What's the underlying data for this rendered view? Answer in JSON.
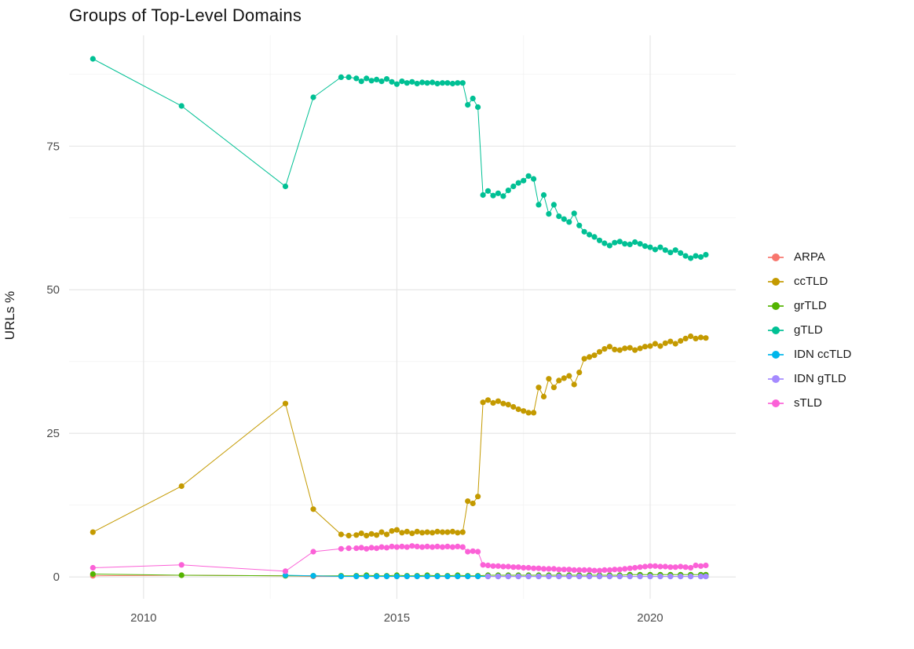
{
  "chart_data": {
    "type": "line",
    "title": "Groups of Top-Level Domains",
    "xlabel": "",
    "ylabel": "URLs %",
    "xlim": [
      2008.53,
      2021.69
    ],
    "ylim": [
      -3.8,
      94.3
    ],
    "xticks": [
      2010,
      2015,
      2020
    ],
    "yticks": [
      0,
      25,
      50,
      75
    ],
    "x_minor": [
      2012.5,
      2017.5
    ],
    "y_minor": [
      12.5,
      37.5,
      62.5,
      87.5
    ],
    "grid": true,
    "legend_position": "right",
    "point_radius": 3.6,
    "line_width": 1,
    "series": [
      {
        "name": "ARPA",
        "color": "#F8766D",
        "x": [
          2009.0,
          2010.75,
          2012.8,
          2013.35,
          2013.9,
          2014.2,
          2014.4,
          2014.6,
          2014.8,
          2015.0,
          2015.2,
          2015.4,
          2015.6,
          2015.8,
          2016.0,
          2016.2,
          2016.4,
          2016.6,
          2016.8,
          2017.0,
          2017.2,
          2017.4,
          2017.6,
          2017.8,
          2018.0,
          2018.2,
          2018.4,
          2018.6,
          2018.8,
          2019.0,
          2019.2,
          2019.4,
          2019.6,
          2019.8,
          2020.0,
          2020.2,
          2020.4,
          2020.6,
          2020.8,
          2021.0,
          2021.1
        ],
        "y": [
          0.2,
          0.3,
          0.2,
          0.1,
          0.1,
          0.1,
          0.1,
          0.1,
          0.1,
          0.1,
          0.1,
          0.1,
          0.1,
          0.1,
          0.1,
          0.1,
          0.1,
          0.1,
          0.1,
          0.1,
          0.1,
          0.1,
          0.1,
          0.1,
          0.1,
          0.1,
          0.1,
          0.1,
          0.1,
          0.1,
          0.1,
          0.1,
          0.1,
          0.1,
          0.1,
          0.1,
          0.1,
          0.1,
          0.1,
          0.1,
          0.1
        ]
      },
      {
        "name": "ccTLD",
        "color": "#C49A00",
        "x": [
          2009.0,
          2010.75,
          2012.8,
          2013.35,
          2013.9,
          2014.05,
          2014.2,
          2014.3,
          2014.4,
          2014.5,
          2014.6,
          2014.7,
          2014.8,
          2014.9,
          2015.0,
          2015.1,
          2015.2,
          2015.3,
          2015.4,
          2015.5,
          2015.6,
          2015.7,
          2015.8,
          2015.9,
          2016.0,
          2016.1,
          2016.2,
          2016.3,
          2016.4,
          2016.5,
          2016.6,
          2016.7,
          2016.8,
          2016.9,
          2017.0,
          2017.1,
          2017.2,
          2017.3,
          2017.4,
          2017.5,
          2017.6,
          2017.7,
          2017.8,
          2017.9,
          2018.0,
          2018.1,
          2018.2,
          2018.3,
          2018.4,
          2018.5,
          2018.6,
          2018.7,
          2018.8,
          2018.9,
          2019.0,
          2019.1,
          2019.2,
          2019.3,
          2019.4,
          2019.5,
          2019.6,
          2019.7,
          2019.8,
          2019.9,
          2020.0,
          2020.1,
          2020.2,
          2020.3,
          2020.4,
          2020.5,
          2020.6,
          2020.7,
          2020.8,
          2020.9,
          2021.0,
          2021.1
        ],
        "y": [
          7.8,
          15.8,
          30.2,
          11.8,
          7.4,
          7.2,
          7.3,
          7.6,
          7.2,
          7.5,
          7.3,
          7.8,
          7.4,
          8.0,
          8.2,
          7.7,
          7.9,
          7.6,
          7.9,
          7.7,
          7.8,
          7.7,
          7.9,
          7.8,
          7.8,
          7.9,
          7.7,
          7.8,
          13.2,
          12.8,
          14.0,
          30.4,
          30.8,
          30.3,
          30.6,
          30.2,
          30.0,
          29.6,
          29.2,
          28.9,
          28.6,
          28.6,
          33.0,
          31.4,
          34.5,
          33.0,
          34.2,
          34.6,
          35.0,
          33.5,
          35.6,
          38.0,
          38.3,
          38.6,
          39.2,
          39.7,
          40.1,
          39.6,
          39.5,
          39.8,
          39.9,
          39.5,
          39.8,
          40.1,
          40.2,
          40.6,
          40.2,
          40.7,
          41.0,
          40.6,
          41.1,
          41.5,
          41.9,
          41.5,
          41.7,
          41.6
        ]
      },
      {
        "name": "grTLD",
        "color": "#53B400",
        "x": [
          2009.0,
          2010.75,
          2012.8,
          2013.35,
          2013.9,
          2014.2,
          2014.4,
          2014.6,
          2014.8,
          2015.0,
          2015.2,
          2015.4,
          2015.6,
          2015.8,
          2016.0,
          2016.2,
          2016.4,
          2016.6,
          2016.8,
          2017.0,
          2017.2,
          2017.4,
          2017.6,
          2017.8,
          2018.0,
          2018.2,
          2018.4,
          2018.6,
          2018.8,
          2019.0,
          2019.2,
          2019.4,
          2019.6,
          2019.8,
          2020.0,
          2020.2,
          2020.4,
          2020.6,
          2020.8,
          2021.0,
          2021.1
        ],
        "y": [
          0.5,
          0.3,
          0.2,
          0.2,
          0.2,
          0.2,
          0.3,
          0.2,
          0.2,
          0.3,
          0.2,
          0.2,
          0.3,
          0.2,
          0.2,
          0.3,
          0.2,
          0.2,
          0.3,
          0.3,
          0.3,
          0.3,
          0.3,
          0.3,
          0.3,
          0.3,
          0.3,
          0.3,
          0.3,
          0.3,
          0.3,
          0.3,
          0.4,
          0.4,
          0.4,
          0.4,
          0.4,
          0.4,
          0.4,
          0.4,
          0.4
        ]
      },
      {
        "name": "gTLD",
        "color": "#00C094",
        "x": [
          2009.0,
          2010.75,
          2012.8,
          2013.35,
          2013.9,
          2014.05,
          2014.2,
          2014.3,
          2014.4,
          2014.5,
          2014.6,
          2014.7,
          2014.8,
          2014.9,
          2015.0,
          2015.1,
          2015.2,
          2015.3,
          2015.4,
          2015.5,
          2015.6,
          2015.7,
          2015.8,
          2015.9,
          2016.0,
          2016.1,
          2016.2,
          2016.3,
          2016.4,
          2016.5,
          2016.6,
          2016.7,
          2016.8,
          2016.9,
          2017.0,
          2017.1,
          2017.2,
          2017.3,
          2017.4,
          2017.5,
          2017.6,
          2017.7,
          2017.8,
          2017.9,
          2018.0,
          2018.1,
          2018.2,
          2018.3,
          2018.4,
          2018.5,
          2018.6,
          2018.7,
          2018.8,
          2018.9,
          2019.0,
          2019.1,
          2019.2,
          2019.3,
          2019.4,
          2019.5,
          2019.6,
          2019.7,
          2019.8,
          2019.9,
          2020.0,
          2020.1,
          2020.2,
          2020.3,
          2020.4,
          2020.5,
          2020.6,
          2020.7,
          2020.8,
          2020.9,
          2021.0,
          2021.1
        ],
        "y": [
          90.2,
          82.0,
          68.0,
          83.5,
          87.0,
          87.0,
          86.8,
          86.3,
          86.8,
          86.4,
          86.6,
          86.3,
          86.7,
          86.2,
          85.8,
          86.3,
          86.0,
          86.2,
          85.9,
          86.1,
          86.0,
          86.1,
          85.9,
          86.0,
          86.0,
          85.9,
          86.0,
          86.0,
          82.2,
          83.3,
          81.8,
          66.5,
          67.2,
          66.4,
          66.8,
          66.3,
          67.3,
          68.0,
          68.6,
          69.0,
          69.8,
          69.3,
          64.8,
          66.5,
          63.2,
          64.8,
          62.8,
          62.3,
          61.8,
          63.3,
          61.2,
          60.1,
          59.6,
          59.2,
          58.6,
          58.1,
          57.7,
          58.2,
          58.4,
          58.0,
          57.9,
          58.3,
          58.0,
          57.6,
          57.4,
          57.0,
          57.4,
          56.9,
          56.5,
          56.9,
          56.4,
          55.9,
          55.5,
          55.9,
          55.7,
          56.1
        ]
      },
      {
        "name": "IDN ccTLD",
        "color": "#00B6EB",
        "x": [
          2012.8,
          2013.35,
          2013.9,
          2014.2,
          2014.4,
          2014.6,
          2014.8,
          2015.0,
          2015.2,
          2015.4,
          2015.6,
          2015.8,
          2016.0,
          2016.2,
          2016.4,
          2016.6,
          2016.8,
          2017.0,
          2017.2,
          2017.4,
          2017.6,
          2017.8,
          2018.0,
          2018.2,
          2018.4,
          2018.6,
          2018.8,
          2019.0,
          2019.2,
          2019.4,
          2019.6,
          2019.8,
          2020.0,
          2020.2,
          2020.4,
          2020.6,
          2020.8,
          2021.0,
          2021.1
        ],
        "y": [
          0.3,
          0.2,
          0.1,
          0.1,
          0.1,
          0.1,
          0.1,
          0.1,
          0.1,
          0.1,
          0.1,
          0.1,
          0.1,
          0.1,
          0.1,
          0.1,
          0.1,
          0.1,
          0.1,
          0.1,
          0.1,
          0.1,
          0.1,
          0.1,
          0.1,
          0.1,
          0.1,
          0.1,
          0.1,
          0.1,
          0.1,
          0.1,
          0.1,
          0.1,
          0.1,
          0.1,
          0.1,
          0.1,
          0.1
        ]
      },
      {
        "name": "IDN gTLD",
        "color": "#A58AFF",
        "x": [
          2016.8,
          2017.0,
          2017.2,
          2017.4,
          2017.6,
          2017.8,
          2018.0,
          2018.2,
          2018.4,
          2018.6,
          2018.8,
          2019.0,
          2019.2,
          2019.4,
          2019.6,
          2019.8,
          2020.0,
          2020.2,
          2020.4,
          2020.6,
          2020.8,
          2021.0,
          2021.1
        ],
        "y": [
          0.1,
          0.1,
          0.1,
          0.1,
          0.1,
          0.1,
          0.1,
          0.1,
          0.1,
          0.1,
          0.1,
          0.1,
          0.1,
          0.1,
          0.1,
          0.1,
          0.1,
          0.1,
          0.1,
          0.1,
          0.1,
          0.1,
          0.1
        ]
      },
      {
        "name": "sTLD",
        "color": "#FB61D7",
        "x": [
          2009.0,
          2010.75,
          2012.8,
          2013.35,
          2013.9,
          2014.05,
          2014.2,
          2014.3,
          2014.4,
          2014.5,
          2014.6,
          2014.7,
          2014.8,
          2014.9,
          2015.0,
          2015.1,
          2015.2,
          2015.3,
          2015.4,
          2015.5,
          2015.6,
          2015.7,
          2015.8,
          2015.9,
          2016.0,
          2016.1,
          2016.2,
          2016.3,
          2016.4,
          2016.5,
          2016.6,
          2016.7,
          2016.8,
          2016.9,
          2017.0,
          2017.1,
          2017.2,
          2017.3,
          2017.4,
          2017.5,
          2017.6,
          2017.7,
          2017.8,
          2017.9,
          2018.0,
          2018.1,
          2018.2,
          2018.3,
          2018.4,
          2018.5,
          2018.6,
          2018.7,
          2018.8,
          2018.9,
          2019.0,
          2019.1,
          2019.2,
          2019.3,
          2019.4,
          2019.5,
          2019.6,
          2019.7,
          2019.8,
          2019.9,
          2020.0,
          2020.1,
          2020.2,
          2020.3,
          2020.4,
          2020.5,
          2020.6,
          2020.7,
          2020.8,
          2020.9,
          2021.0,
          2021.1
        ],
        "y": [
          1.6,
          2.1,
          1.0,
          4.4,
          4.9,
          5.0,
          5.0,
          5.1,
          4.9,
          5.1,
          5.0,
          5.2,
          5.1,
          5.3,
          5.2,
          5.3,
          5.2,
          5.4,
          5.3,
          5.2,
          5.3,
          5.2,
          5.3,
          5.2,
          5.3,
          5.2,
          5.3,
          5.2,
          4.4,
          4.5,
          4.4,
          2.1,
          2.0,
          1.9,
          1.9,
          1.8,
          1.8,
          1.7,
          1.7,
          1.6,
          1.6,
          1.5,
          1.5,
          1.4,
          1.4,
          1.4,
          1.3,
          1.3,
          1.3,
          1.2,
          1.2,
          1.2,
          1.2,
          1.1,
          1.1,
          1.2,
          1.2,
          1.3,
          1.3,
          1.4,
          1.5,
          1.6,
          1.7,
          1.8,
          1.9,
          1.9,
          1.8,
          1.8,
          1.7,
          1.7,
          1.8,
          1.7,
          1.6,
          2.0,
          1.9,
          2.0
        ]
      }
    ]
  }
}
